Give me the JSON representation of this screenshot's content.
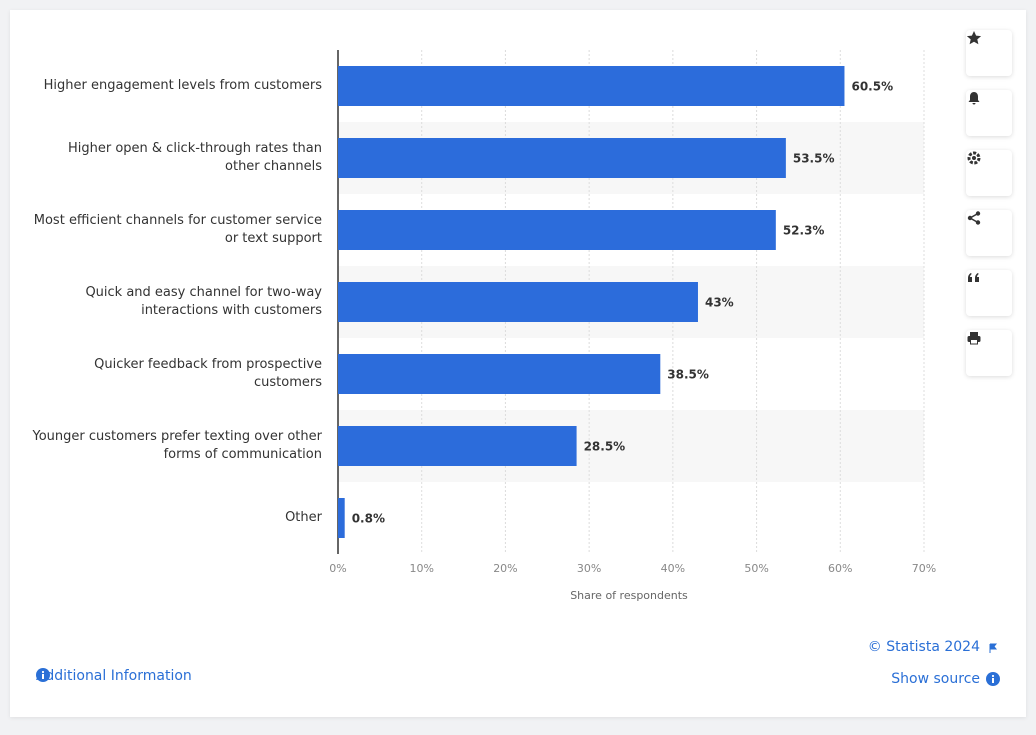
{
  "chart_data": {
    "type": "bar",
    "orientation": "horizontal",
    "categories": [
      "Higher engagement levels from customers",
      "Higher open & click-through rates than other channels",
      "Most efficient channels for customer service or text support",
      "Quick and easy channel for two-way interactions with customers",
      "Quicker feedback from prospective customers",
      "Younger customers prefer texting over other forms of communication",
      "Other"
    ],
    "values": [
      60.5,
      53.5,
      52.3,
      43,
      38.5,
      28.5,
      0.8
    ],
    "value_labels": [
      "60.5%",
      "53.5%",
      "52.3%",
      "43%",
      "38.5%",
      "28.5%",
      "0.8%"
    ],
    "color": "#2c6cdb",
    "xlim": [
      0,
      70
    ],
    "xticks": [
      {
        "value": 0,
        "label": "0%"
      },
      {
        "value": 10,
        "label": "10%"
      },
      {
        "value": 20,
        "label": "20%"
      },
      {
        "value": 30,
        "label": "30%"
      },
      {
        "value": 40,
        "label": "40%"
      },
      {
        "value": 50,
        "label": "50%"
      },
      {
        "value": 60,
        "label": "60%"
      },
      {
        "value": 70,
        "label": "70%"
      }
    ],
    "xlabel": "Share of respondents",
    "grid": true
  },
  "footer": {
    "info": "Additional Information",
    "copyright": "© Statista 2024",
    "source": "Show source"
  }
}
